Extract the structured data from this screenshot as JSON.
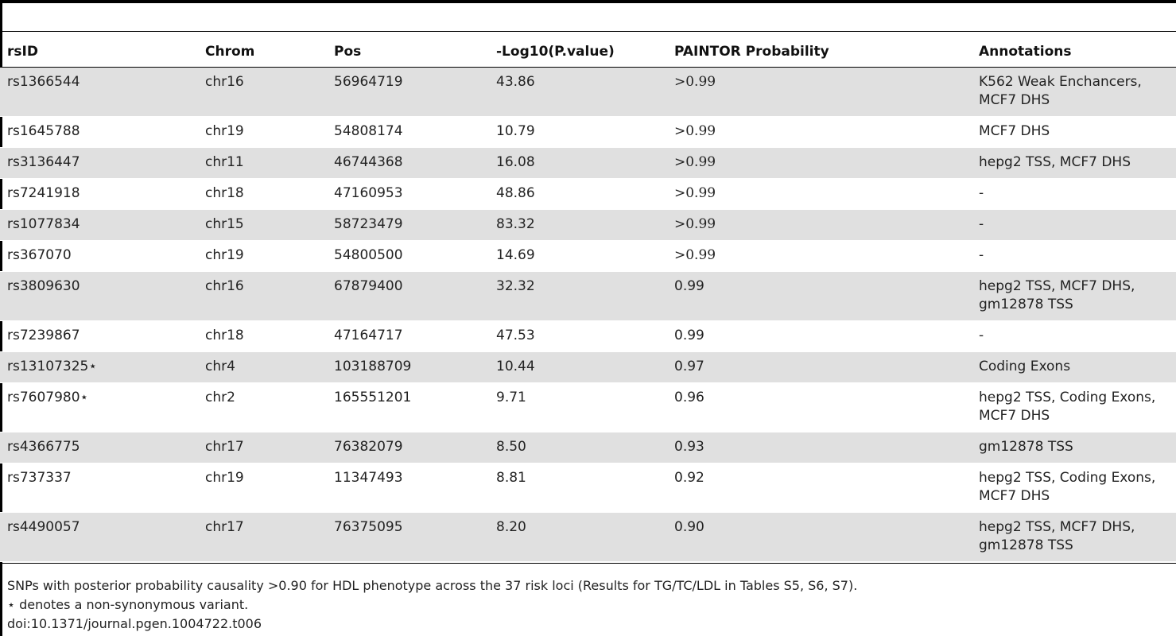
{
  "table": {
    "headers": [
      "rsID",
      "Chrom",
      "Pos",
      "-Log10(P.value)",
      "PAINTOR Probability",
      "Annotations"
    ],
    "rows": [
      {
        "rsid": "rs1366544",
        "chrom": "chr16",
        "pos": "56964719",
        "logp": "43.86",
        "prob": ">0.99",
        "annot": "K562 Weak Enchancers, MCF7 DHS"
      },
      {
        "rsid": "rs1645788",
        "chrom": "chr19",
        "pos": "54808174",
        "logp": "10.79",
        "prob": ">0.99",
        "annot": "MCF7 DHS"
      },
      {
        "rsid": "rs3136447",
        "chrom": "chr11",
        "pos": "46744368",
        "logp": "16.08",
        "prob": ">0.99",
        "annot": "hepg2 TSS, MCF7 DHS"
      },
      {
        "rsid": "rs7241918",
        "chrom": "chr18",
        "pos": "47160953",
        "logp": "48.86",
        "prob": ">0.99",
        "annot": "-"
      },
      {
        "rsid": "rs1077834",
        "chrom": "chr15",
        "pos": "58723479",
        "logp": "83.32",
        "prob": ">0.99",
        "annot": "-"
      },
      {
        "rsid": "rs367070",
        "chrom": "chr19",
        "pos": "54800500",
        "logp": "14.69",
        "prob": ">0.99",
        "annot": "-"
      },
      {
        "rsid": "rs3809630",
        "chrom": "chr16",
        "pos": "67879400",
        "logp": "32.32",
        "prob": "0.99",
        "annot": "hepg2 TSS, MCF7 DHS, gm12878 TSS"
      },
      {
        "rsid": "rs7239867",
        "chrom": "chr18",
        "pos": "47164717",
        "logp": "47.53",
        "prob": "0.99",
        "annot": "-"
      },
      {
        "rsid": "rs13107325⋆",
        "chrom": "chr4",
        "pos": "103188709",
        "logp": "10.44",
        "prob": "0.97",
        "annot": "Coding Exons"
      },
      {
        "rsid": "rs7607980⋆",
        "chrom": "chr2",
        "pos": "165551201",
        "logp": "9.71",
        "prob": "0.96",
        "annot": "hepg2 TSS, Coding Exons, MCF7 DHS"
      },
      {
        "rsid": "rs4366775",
        "chrom": "chr17",
        "pos": "76382079",
        "logp": "8.50",
        "prob": "0.93",
        "annot": "gm12878 TSS"
      },
      {
        "rsid": "rs737337",
        "chrom": "chr19",
        "pos": "11347493",
        "logp": "8.81",
        "prob": "0.92",
        "annot": "hepg2 TSS, Coding Exons, MCF7 DHS"
      },
      {
        "rsid": "rs4490057",
        "chrom": "chr17",
        "pos": "76375095",
        "logp": "8.20",
        "prob": "0.90",
        "annot": "hepg2 TSS, MCF7 DHS, gm12878 TSS"
      }
    ]
  },
  "footnotes": {
    "caption": "SNPs with posterior probability causality >0.90 for HDL phenotype across the 37 risk loci (Results for TG/TC/LDL in Tables S5, S6, S7).",
    "star_note": "⋆ denotes a non-synonymous variant.",
    "doi": "doi:10.1371/journal.pgen.1004722.t006"
  },
  "colors": {
    "shaded_row": "#e0e0e0",
    "rule": "#000000",
    "text": "#222222"
  }
}
